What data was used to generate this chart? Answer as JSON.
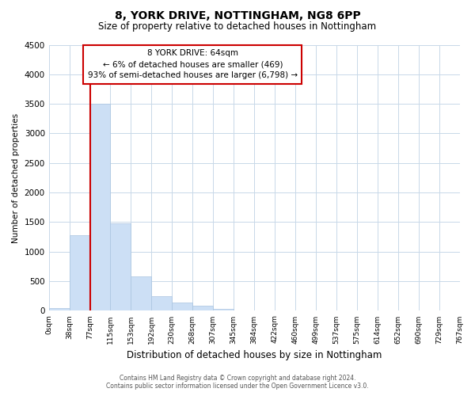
{
  "title": "8, YORK DRIVE, NOTTINGHAM, NG8 6PP",
  "subtitle": "Size of property relative to detached houses in Nottingham",
  "bar_values": [
    50,
    1280,
    3500,
    1480,
    580,
    250,
    140,
    80,
    30,
    10,
    5,
    0,
    0,
    0,
    0,
    0,
    0,
    0,
    0
  ],
  "bin_labels": [
    "0sqm",
    "38sqm",
    "77sqm",
    "115sqm",
    "153sqm",
    "192sqm",
    "230sqm",
    "268sqm",
    "307sqm",
    "345sqm",
    "384sqm",
    "422sqm",
    "460sqm",
    "499sqm",
    "537sqm",
    "575sqm",
    "614sqm",
    "652sqm",
    "690sqm",
    "729sqm",
    "767sqm"
  ],
  "bar_color": "#ccdff5",
  "bar_edge_color": "#aac4e0",
  "marker_line_color": "#cc0000",
  "ylabel": "Number of detached properties",
  "xlabel": "Distribution of detached houses by size in Nottingham",
  "ylim": [
    0,
    4500
  ],
  "yticks": [
    0,
    500,
    1000,
    1500,
    2000,
    2500,
    3000,
    3500,
    4000,
    4500
  ],
  "annotation_title": "8 YORK DRIVE: 64sqm",
  "annotation_line1": "← 6% of detached houses are smaller (469)",
  "annotation_line2": "93% of semi-detached houses are larger (6,798) →",
  "annotation_box_color": "#ffffff",
  "annotation_box_edge_color": "#cc0000",
  "footer_line1": "Contains HM Land Registry data © Crown copyright and database right 2024.",
  "footer_line2": "Contains public sector information licensed under the Open Government Licence v3.0.",
  "background_color": "#ffffff",
  "grid_color": "#c8d8e8"
}
